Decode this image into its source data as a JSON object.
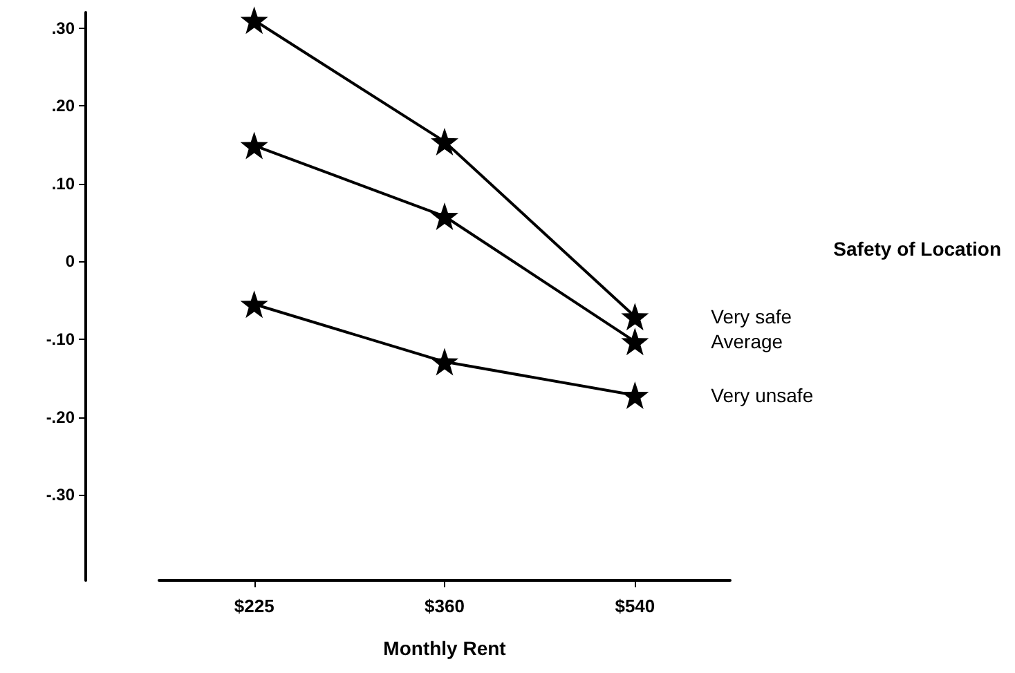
{
  "chart_data": {
    "type": "line",
    "xlabel": "Monthly Rent",
    "legend_title": "Safety of Location",
    "categories": [
      "$225",
      "$360",
      "$540"
    ],
    "series": [
      {
        "name": "Very safe",
        "color": "#000000",
        "values": [
          0.31,
          0.154,
          -0.071
        ]
      },
      {
        "name": "Average",
        "color": "#000000",
        "values": [
          0.149,
          0.058,
          -0.103
        ]
      },
      {
        "name": "Very unsafe",
        "color": "#000000",
        "values": [
          -0.055,
          -0.129,
          -0.172
        ]
      }
    ],
    "ylim": [
      -0.41,
      0.32
    ],
    "yticks": [
      {
        "value": -0.3,
        "label": "-.30"
      },
      {
        "value": -0.2,
        "label": "-.20"
      },
      {
        "value": -0.1,
        "label": "-.10"
      },
      {
        "value": 0,
        "label": "0"
      },
      {
        "value": 0.1,
        "label": ".10"
      },
      {
        "value": 0.2,
        "label": ".20"
      },
      {
        "value": 0.3,
        "label": ".30"
      }
    ],
    "grid": false,
    "legend": false,
    "marker": "star",
    "line_style": "solid"
  }
}
